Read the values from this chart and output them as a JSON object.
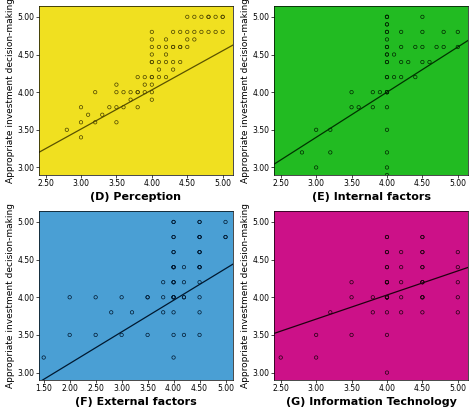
{
  "panels": [
    {
      "label": "(D) Perception",
      "bg_color": "#f0e020",
      "line_color": "#5a5200",
      "scatter_color": "#4a4200",
      "xlim": [
        2.4,
        5.15
      ],
      "ylim": [
        2.9,
        5.15
      ],
      "xticks": [
        2.5,
        3.0,
        3.5,
        4.0,
        4.5,
        5.0
      ],
      "yticks": [
        3.0,
        3.5,
        4.0,
        4.5,
        5.0
      ],
      "slope": 0.52,
      "intercept": 1.95,
      "scatter_x": [
        2.8,
        3.0,
        3.0,
        3.0,
        3.1,
        3.2,
        3.2,
        3.3,
        3.4,
        3.5,
        3.5,
        3.5,
        3.5,
        3.6,
        3.6,
        3.7,
        3.7,
        3.8,
        3.8,
        3.8,
        3.8,
        3.9,
        3.9,
        3.9,
        4.0,
        4.0,
        4.0,
        4.0,
        4.0,
        4.0,
        4.0,
        4.0,
        4.0,
        4.0,
        4.0,
        4.1,
        4.1,
        4.1,
        4.1,
        4.2,
        4.2,
        4.2,
        4.2,
        4.2,
        4.3,
        4.3,
        4.3,
        4.3,
        4.3,
        4.4,
        4.4,
        4.4,
        4.4,
        4.5,
        4.5,
        4.5,
        4.5,
        4.6,
        4.6,
        4.6,
        4.7,
        4.7,
        4.8,
        4.8,
        4.8,
        4.9,
        4.9,
        5.0,
        5.0,
        5.0
      ],
      "scatter_y": [
        3.5,
        3.4,
        3.6,
        3.8,
        3.7,
        3.6,
        4.0,
        3.7,
        3.8,
        3.6,
        3.8,
        4.0,
        4.1,
        3.8,
        4.0,
        3.9,
        4.0,
        3.8,
        4.0,
        4.0,
        4.2,
        4.0,
        4.1,
        4.2,
        3.9,
        4.0,
        4.1,
        4.2,
        4.2,
        4.4,
        4.4,
        4.5,
        4.6,
        4.7,
        4.8,
        4.2,
        4.3,
        4.4,
        4.6,
        4.2,
        4.4,
        4.5,
        4.6,
        4.7,
        4.3,
        4.4,
        4.6,
        4.6,
        4.8,
        4.4,
        4.6,
        4.6,
        4.8,
        4.6,
        4.7,
        4.8,
        5.0,
        4.7,
        4.8,
        5.0,
        4.8,
        5.0,
        4.8,
        5.0,
        5.0,
        4.8,
        5.0,
        4.8,
        5.0,
        5.0
      ]
    },
    {
      "label": "(E) Internal factors",
      "bg_color": "#22bb22",
      "line_color": "#003300",
      "scatter_color": "#002800",
      "xlim": [
        2.4,
        5.15
      ],
      "ylim": [
        2.9,
        5.15
      ],
      "xticks": [
        2.5,
        3.0,
        3.5,
        4.0,
        4.5,
        5.0
      ],
      "yticks": [
        3.0,
        3.5,
        4.0,
        4.5,
        5.0
      ],
      "slope": 0.6,
      "intercept": 1.6,
      "scatter_x": [
        2.8,
        3.0,
        3.0,
        3.2,
        3.2,
        3.5,
        3.5,
        3.6,
        3.8,
        3.8,
        3.9,
        4.0,
        4.0,
        4.0,
        4.0,
        4.0,
        4.0,
        4.0,
        4.0,
        4.0,
        4.0,
        4.0,
        4.0,
        4.0,
        4.0,
        4.0,
        4.0,
        4.0,
        4.0,
        4.0,
        4.0,
        4.0,
        4.0,
        4.0,
        4.0,
        4.0,
        4.1,
        4.1,
        4.2,
        4.2,
        4.2,
        4.2,
        4.3,
        4.4,
        4.4,
        4.5,
        4.5,
        4.5,
        4.5,
        4.6,
        4.7,
        4.8,
        4.8,
        5.0,
        5.0
      ],
      "scatter_y": [
        3.2,
        3.0,
        3.5,
        3.2,
        3.5,
        3.8,
        4.0,
        3.8,
        3.8,
        4.0,
        4.0,
        2.9,
        3.0,
        3.2,
        3.5,
        3.8,
        4.0,
        4.0,
        4.0,
        4.0,
        4.2,
        4.2,
        4.4,
        4.4,
        4.5,
        4.5,
        4.6,
        4.6,
        4.7,
        4.8,
        4.8,
        4.9,
        4.9,
        5.0,
        5.0,
        5.0,
        4.2,
        4.5,
        4.2,
        4.4,
        4.6,
        4.8,
        4.4,
        4.2,
        4.6,
        4.4,
        4.6,
        4.8,
        5.0,
        4.4,
        4.6,
        4.6,
        4.8,
        4.6,
        4.8
      ]
    },
    {
      "label": "(F) External factors",
      "bg_color": "#4a9fd4",
      "line_color": "#001830",
      "scatter_color": "#001830",
      "xlim": [
        1.4,
        5.15
      ],
      "ylim": [
        2.9,
        5.15
      ],
      "xticks": [
        1.5,
        2.0,
        2.5,
        3.0,
        3.5,
        4.0,
        4.5,
        5.0
      ],
      "yticks": [
        3.0,
        3.5,
        4.0,
        4.5,
        5.0
      ],
      "slope": 0.42,
      "intercept": 2.28,
      "scatter_x": [
        1.5,
        2.0,
        2.0,
        2.5,
        2.5,
        2.8,
        3.0,
        3.0,
        3.2,
        3.5,
        3.5,
        3.5,
        3.8,
        3.8,
        3.8,
        4.0,
        4.0,
        4.0,
        4.0,
        4.0,
        4.0,
        4.0,
        4.0,
        4.0,
        4.0,
        4.0,
        4.0,
        4.0,
        4.0,
        4.0,
        4.0,
        4.0,
        4.0,
        4.0,
        4.0,
        4.2,
        4.2,
        4.2,
        4.2,
        4.2,
        4.5,
        4.5,
        4.5,
        4.5,
        4.5,
        4.5,
        4.5,
        4.5,
        4.5,
        4.5,
        4.5,
        4.5,
        4.5,
        4.5,
        4.5,
        5.0,
        5.0,
        5.0
      ],
      "scatter_y": [
        3.2,
        3.5,
        4.0,
        3.5,
        4.0,
        3.8,
        3.5,
        4.0,
        3.8,
        3.5,
        4.0,
        4.0,
        3.8,
        4.0,
        4.2,
        3.2,
        3.5,
        3.8,
        4.0,
        4.0,
        4.0,
        4.0,
        4.2,
        4.2,
        4.2,
        4.4,
        4.4,
        4.4,
        4.4,
        4.6,
        4.6,
        4.8,
        4.8,
        5.0,
        5.0,
        3.5,
        4.0,
        4.0,
        4.2,
        4.4,
        3.5,
        3.8,
        4.0,
        4.2,
        4.4,
        4.4,
        4.4,
        4.6,
        4.6,
        4.6,
        4.8,
        4.8,
        4.8,
        5.0,
        5.0,
        4.8,
        4.8,
        5.0
      ]
    },
    {
      "label": "(G) Information Technology",
      "bg_color": "#cc1188",
      "line_color": "#200010",
      "scatter_color": "#200010",
      "xlim": [
        2.4,
        5.15
      ],
      "ylim": [
        2.9,
        5.15
      ],
      "xticks": [
        2.5,
        3.0,
        3.5,
        4.0,
        4.5,
        5.0
      ],
      "yticks": [
        3.0,
        3.5,
        4.0,
        4.5,
        5.0
      ],
      "slope": 0.32,
      "intercept": 2.75,
      "scatter_x": [
        2.5,
        3.0,
        3.0,
        3.2,
        3.5,
        3.5,
        3.5,
        3.8,
        3.8,
        4.0,
        4.0,
        4.0,
        4.0,
        4.0,
        4.0,
        4.0,
        4.0,
        4.0,
        4.0,
        4.0,
        4.0,
        4.0,
        4.0,
        4.0,
        4.0,
        4.0,
        4.0,
        4.0,
        4.0,
        4.2,
        4.2,
        4.2,
        4.2,
        4.2,
        4.5,
        4.5,
        4.5,
        4.5,
        4.5,
        4.5,
        4.5,
        4.5,
        4.5,
        4.5,
        4.5,
        4.5,
        4.5,
        5.0,
        5.0,
        5.0,
        5.0,
        5.0
      ],
      "scatter_y": [
        3.2,
        3.2,
        3.5,
        3.8,
        3.5,
        4.0,
        4.2,
        3.8,
        4.0,
        3.0,
        3.5,
        3.8,
        4.0,
        4.0,
        4.0,
        4.0,
        4.0,
        4.0,
        4.0,
        4.2,
        4.2,
        4.2,
        4.2,
        4.4,
        4.4,
        4.6,
        4.6,
        4.8,
        4.8,
        3.8,
        4.0,
        4.2,
        4.4,
        4.6,
        3.8,
        4.0,
        4.0,
        4.0,
        4.2,
        4.2,
        4.2,
        4.4,
        4.4,
        4.6,
        4.6,
        4.8,
        4.8,
        3.8,
        4.0,
        4.2,
        4.4,
        4.6
      ]
    }
  ],
  "ylabel": "Appropriate investment decision-making",
  "xlabel_fontsize": 8,
  "tick_fontsize": 5.5,
  "ylabel_fontsize": 6.5
}
